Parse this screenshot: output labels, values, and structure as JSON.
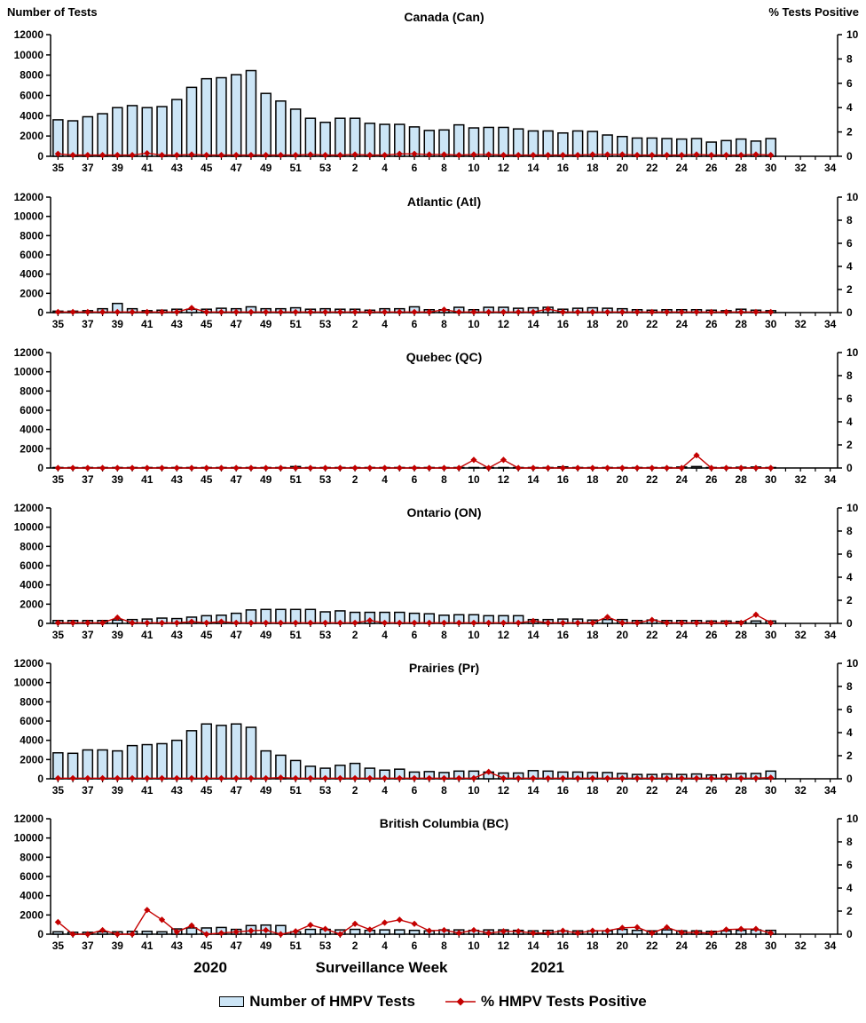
{
  "header": {
    "left_axis_label": "Number of Tests",
    "right_axis_label": "% Tests Positive"
  },
  "footer": {
    "year_left": "2020",
    "x_axis_title": "Surveillance Week",
    "year_right": "2021"
  },
  "legend": {
    "bar_label": "Number of HMPV Tests",
    "line_label": "% HMPV Tests Positive"
  },
  "colors": {
    "bar_fill": "#CCE5F6",
    "bar_border": "#000000",
    "line": "#C40000",
    "axis": "#000000",
    "text": "#000000"
  },
  "chart_data": {
    "type": "bar",
    "description": "Six stacked region panels. Bars = weekly number of HMPV tests (left axis, 0-12000). Red diamond line = % HMPV tests positive (right axis, 0-10). X axis = surveillance weeks 35-53 of 2020 then 1-34 of 2021; data reported through week 30 of 2021.",
    "categories_weeks": [
      "35",
      "36",
      "37",
      "38",
      "39",
      "40",
      "41",
      "42",
      "43",
      "44",
      "45",
      "46",
      "47",
      "48",
      "49",
      "50",
      "51",
      "52",
      "53",
      "1",
      "2",
      "3",
      "4",
      "5",
      "6",
      "7",
      "8",
      "9",
      "10",
      "11",
      "12",
      "13",
      "14",
      "15",
      "16",
      "17",
      "18",
      "19",
      "20",
      "21",
      "22",
      "23",
      "24",
      "25",
      "26",
      "27",
      "28",
      "29",
      "30",
      "31",
      "32",
      "33",
      "34"
    ],
    "x_label_every_weeks": 2,
    "left_axis": {
      "title": "Number of Tests",
      "range": [
        0,
        12000
      ],
      "tick_step": 2000
    },
    "right_axis": {
      "title": "% Tests Positive",
      "range": [
        0,
        10
      ],
      "tick_step": 2
    },
    "panels": [
      {
        "title": "Canada (Can)",
        "tests": [
          3600,
          3500,
          3900,
          4200,
          4800,
          5000,
          4800,
          4900,
          5600,
          6800,
          7650,
          7750,
          8050,
          8450,
          6200,
          5450,
          4650,
          3750,
          3350,
          3750,
          3750,
          3250,
          3150,
          3150,
          2900,
          2550,
          2600,
          3100,
          2800,
          2850,
          2850,
          2700,
          2500,
          2500,
          2300,
          2500,
          2450,
          2100,
          1950,
          1800,
          1800,
          1750,
          1700,
          1750,
          1400,
          1550,
          1700,
          1500,
          1750
        ],
        "pct_positive": [
          0.2,
          0.1,
          0.1,
          0.1,
          0.1,
          0.1,
          0.25,
          0.1,
          0.1,
          0.15,
          0.1,
          0.1,
          0.1,
          0.1,
          0.1,
          0.1,
          0.1,
          0.15,
          0.1,
          0.1,
          0.15,
          0.1,
          0.1,
          0.2,
          0.2,
          0.15,
          0.15,
          0.1,
          0.15,
          0.15,
          0.1,
          0.1,
          0.1,
          0.1,
          0.1,
          0.1,
          0.15,
          0.15,
          0.15,
          0.1,
          0.1,
          0.1,
          0.1,
          0.15,
          0.1,
          0.1,
          0.1,
          0.15,
          0.1
        ]
      },
      {
        "title": "Atlantic (Atl)",
        "tests": [
          150,
          150,
          200,
          400,
          950,
          400,
          200,
          250,
          350,
          350,
          350,
          450,
          400,
          600,
          400,
          400,
          500,
          350,
          400,
          350,
          350,
          250,
          400,
          400,
          600,
          300,
          300,
          550,
          300,
          550,
          550,
          450,
          500,
          550,
          350,
          450,
          500,
          450,
          400,
          300,
          250,
          300,
          300,
          300,
          250,
          200,
          350,
          250,
          200
        ],
        "pct_positive": [
          0.05,
          0.05,
          0.05,
          0.05,
          0.05,
          0.05,
          0.05,
          0.05,
          0.05,
          0.4,
          0.05,
          0.05,
          0.05,
          0.05,
          0.05,
          0.05,
          0.05,
          0.05,
          0.05,
          0.05,
          0.05,
          0.05,
          0.05,
          0.05,
          0.05,
          0.05,
          0.25,
          0.05,
          0.05,
          0.05,
          0.05,
          0.05,
          0.05,
          0.3,
          0.05,
          0.05,
          0.05,
          0.05,
          0.05,
          0.05,
          0.05,
          0.05,
          0.05,
          0.05,
          0.05,
          0.05,
          0.05,
          0.05,
          0.05
        ]
      },
      {
        "title": "Quebec (QC)",
        "tests": [
          50,
          50,
          50,
          50,
          50,
          50,
          50,
          50,
          50,
          50,
          50,
          50,
          50,
          50,
          50,
          50,
          150,
          50,
          50,
          50,
          50,
          50,
          50,
          50,
          50,
          50,
          50,
          50,
          50,
          50,
          50,
          50,
          50,
          50,
          120,
          50,
          50,
          50,
          50,
          50,
          50,
          50,
          100,
          150,
          50,
          50,
          80,
          100,
          50
        ],
        "pct_positive": [
          0,
          0,
          0,
          0,
          0,
          0,
          0,
          0,
          0,
          0,
          0,
          0,
          0,
          0,
          0,
          0,
          0,
          0,
          0,
          0,
          0,
          0,
          0,
          0,
          0,
          0,
          0,
          0,
          0.7,
          0,
          0.7,
          0,
          0,
          0,
          0,
          0,
          0,
          0,
          0,
          0,
          0,
          0,
          0,
          1.1,
          0,
          0,
          0,
          0,
          0
        ]
      },
      {
        "title": "Ontario (ON)",
        "tests": [
          300,
          300,
          300,
          300,
          350,
          400,
          450,
          550,
          500,
          650,
          800,
          850,
          1050,
          1400,
          1450,
          1450,
          1450,
          1450,
          1200,
          1300,
          1150,
          1150,
          1150,
          1150,
          1050,
          1000,
          850,
          900,
          900,
          800,
          800,
          800,
          400,
          400,
          450,
          450,
          350,
          400,
          400,
          300,
          350,
          300,
          300,
          300,
          250,
          250,
          200,
          250,
          250
        ],
        "pct_positive": [
          0.05,
          0.05,
          0.05,
          0.05,
          0.5,
          0.05,
          0.05,
          0.05,
          0.05,
          0.15,
          0.05,
          0.15,
          0.05,
          0.05,
          0.05,
          0.05,
          0.05,
          0.05,
          0.05,
          0.05,
          0.05,
          0.25,
          0.05,
          0.05,
          0.05,
          0.05,
          0.05,
          0.05,
          0.05,
          0.05,
          0.05,
          0.05,
          0.2,
          0.05,
          0.05,
          0.05,
          0.05,
          0.55,
          0.05,
          0.05,
          0.3,
          0.05,
          0.05,
          0.05,
          0.05,
          0.05,
          0.05,
          0.75,
          0.05
        ]
      },
      {
        "title": "Prairies (Pr)",
        "tests": [
          2700,
          2650,
          3000,
          3000,
          2900,
          3450,
          3550,
          3650,
          4000,
          5000,
          5700,
          5550,
          5700,
          5350,
          2900,
          2450,
          1900,
          1300,
          1100,
          1400,
          1600,
          1100,
          900,
          1000,
          700,
          750,
          650,
          800,
          800,
          700,
          600,
          600,
          850,
          800,
          700,
          700,
          650,
          650,
          550,
          450,
          450,
          500,
          450,
          500,
          400,
          450,
          550,
          550,
          800
        ],
        "pct_positive": [
          0.05,
          0.05,
          0.05,
          0.05,
          0.05,
          0.05,
          0.05,
          0.05,
          0.05,
          0.05,
          0.05,
          0.05,
          0.05,
          0.05,
          0.05,
          0.1,
          0.05,
          0.05,
          0.05,
          0.05,
          0.05,
          0.05,
          0.05,
          0.05,
          0.05,
          0.05,
          0.05,
          0.05,
          0.05,
          0.6,
          0.05,
          0.05,
          0.05,
          0.05,
          0.05,
          0.05,
          0.05,
          0.05,
          0.05,
          0.05,
          0.05,
          0.05,
          0.05,
          0.05,
          0.05,
          0.05,
          0.05,
          0.05,
          0.1
        ]
      },
      {
        "title": "British Columbia (BC)",
        "tests": [
          250,
          200,
          200,
          250,
          250,
          300,
          300,
          250,
          550,
          650,
          650,
          700,
          500,
          900,
          950,
          900,
          250,
          500,
          500,
          450,
          500,
          400,
          450,
          450,
          400,
          350,
          450,
          450,
          400,
          450,
          450,
          400,
          350,
          400,
          350,
          350,
          350,
          350,
          500,
          400,
          350,
          450,
          350,
          350,
          300,
          350,
          400,
          450,
          400
        ],
        "pct_positive": [
          1.05,
          0,
          0,
          0.35,
          0,
          0,
          2.1,
          1.25,
          0.2,
          0.75,
          0,
          0.1,
          0.2,
          0.3,
          0.35,
          0,
          0.25,
          0.8,
          0.45,
          0,
          0.9,
          0.4,
          1.0,
          1.25,
          0.9,
          0.3,
          0.35,
          0.1,
          0.35,
          0.1,
          0.25,
          0.25,
          0.1,
          0.1,
          0.3,
          0.1,
          0.3,
          0.3,
          0.55,
          0.6,
          0.1,
          0.6,
          0.15,
          0.15,
          0.1,
          0.4,
          0.45,
          0.45,
          0.1
        ]
      }
    ]
  }
}
